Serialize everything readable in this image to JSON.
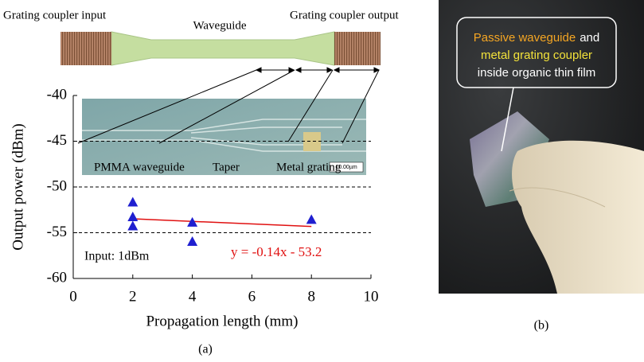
{
  "chart_data": {
    "type": "scatter",
    "x_label": "Propagation length (mm)",
    "y_label": "Output power (dBm)",
    "xlim": [
      0,
      10
    ],
    "xticks": [
      0,
      2,
      4,
      6,
      8,
      10
    ],
    "ylim": [
      -60,
      -40
    ],
    "yticks": [
      -60,
      -55,
      -50,
      -45,
      -40
    ],
    "grid": true,
    "series": [
      {
        "color": "#1f1fd0",
        "marker": "triangle",
        "x": [
          2,
          2,
          2,
          4,
          4,
          8
        ],
        "values": [
          -51.7,
          -53.3,
          -54.3,
          -53.9,
          -56.0,
          -53.6
        ]
      }
    ],
    "trendline": {
      "color": "#e01010",
      "slope": -0.14,
      "intercept": -53.2,
      "xrange": [
        2,
        8
      ],
      "label": "y = -0.14x - 53.2"
    },
    "annotations": [
      "Input: 1dBm",
      "PMMA waveguide",
      "Taper",
      "Metal grating",
      "10.00µm"
    ],
    "caption": "(a)"
  },
  "diagram": {
    "labels": [
      "Grating coupler input",
      "Waveguide",
      "Grating coupler output"
    ]
  },
  "photo": {
    "callout": [
      "Passive waveguide",
      "and",
      "metal grating coupler",
      "inside organic thin film"
    ],
    "caption": "(b)"
  }
}
